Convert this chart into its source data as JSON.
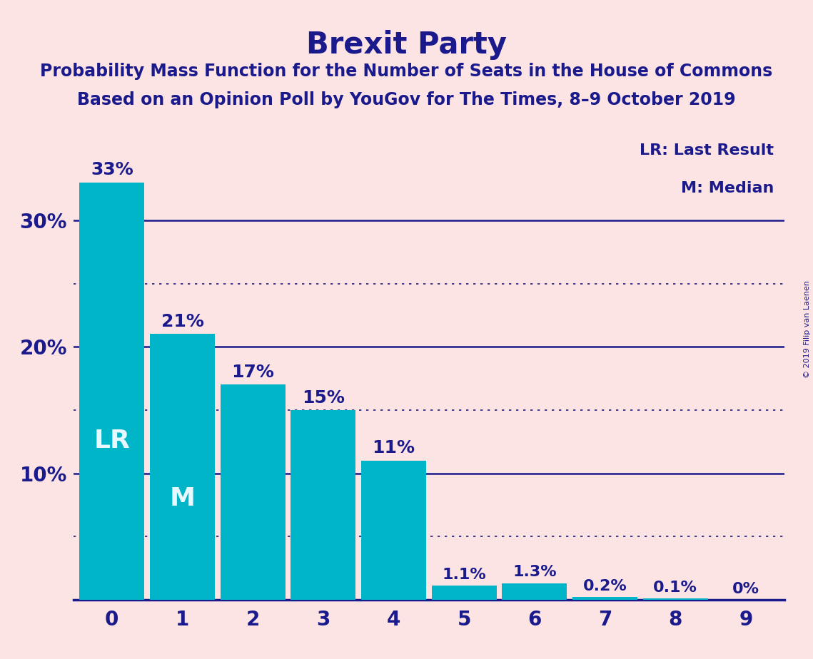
{
  "title": "Brexit Party",
  "subtitle1": "Probability Mass Function for the Number of Seats in the House of Commons",
  "subtitle2": "Based on an Opinion Poll by YouGov for The Times, 8–9 October 2019",
  "copyright": "© 2019 Filip van Laenen",
  "categories": [
    0,
    1,
    2,
    3,
    4,
    5,
    6,
    7,
    8,
    9
  ],
  "values": [
    33,
    21,
    17,
    15,
    11,
    1.1,
    1.3,
    0.2,
    0.1,
    0
  ],
  "value_labels": [
    "33%",
    "21%",
    "17%",
    "15%",
    "11%",
    "1.1%",
    "1.3%",
    "0.2%",
    "0.1%",
    "0%"
  ],
  "bar_color": "#00b5c8",
  "background_color": "#fce4e4",
  "text_color": "#1a1a8c",
  "bar_label_color_inside": "#e8f8ff",
  "yticks": [
    10,
    20,
    30
  ],
  "ytick_labels": [
    "10%",
    "20%",
    "30%"
  ],
  "ylim": [
    0,
    37
  ],
  "dotted_lines": [
    25,
    15,
    5
  ],
  "solid_lines": [
    30,
    20,
    10
  ],
  "lr_bar": 0,
  "m_bar": 1,
  "lr_label": "LR",
  "m_label": "M",
  "legend_lr": "LR: Last Result",
  "legend_m": "M: Median",
  "title_fontsize": 30,
  "subtitle_fontsize": 17,
  "axis_tick_fontsize": 20,
  "bar_label_fontsize_large": 18,
  "bar_label_fontsize_small": 16,
  "inside_label_fontsize": 26,
  "legend_fontsize": 16,
  "copyright_fontsize": 8
}
